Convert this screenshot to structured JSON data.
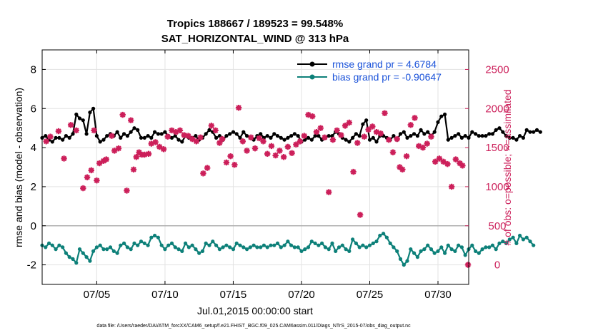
{
  "title_line1": "Tropics 188667 / 189523 = 99.548%",
  "title_line2": "SAT_HORIZONTAL_WIND @ 313 hPa",
  "xlabel": "Jul.01,2015 00:00:00 start",
  "ylabel_left": "rmse and bias (model - observation)",
  "ylabel_right": "# of obs: o=possible; ×=assimilated",
  "footnote": "data file: /Users/raeder/DAI/ATM_forcXX/CAM6_setup/f.e21.FHIST_BGC.f09_025.CAM6assim.011/Diags_NTrS_2015-07/obs_diag_output.nc",
  "colors": {
    "rmse": "#000000",
    "bias": "#0d8079",
    "nobs": "#cc1f5a",
    "legend_text": "#1a52d9",
    "grid": "#e3e3e3",
    "zero_line": "#b0b0b0"
  },
  "chart_data": {
    "type": "line",
    "x_range": [
      1.0,
      32.25
    ],
    "ylim_left": [
      -3,
      9
    ],
    "ylim_right": [
      -250,
      2750
    ],
    "left_ticks": [
      -2,
      0,
      2,
      4,
      6,
      8
    ],
    "right_ticks": [
      0,
      500,
      1000,
      1500,
      2000,
      2500
    ],
    "x_ticks": [
      {
        "day": 5,
        "label": "07/05"
      },
      {
        "day": 10,
        "label": "07/10"
      },
      {
        "day": 15,
        "label": "07/15"
      },
      {
        "day": 20,
        "label": "07/20"
      },
      {
        "day": 25,
        "label": "07/25"
      },
      {
        "day": 30,
        "label": "07/30"
      }
    ],
    "x_step_days": 0.25,
    "legend": [
      {
        "name": "rmse",
        "label": "rmse grand pr = 4.6784"
      },
      {
        "name": "bias",
        "label": "bias grand pr = -0.90647"
      }
    ],
    "series": [
      {
        "name": "rmse",
        "axis": "left",
        "color": "#000000",
        "values": [
          4.5,
          4.6,
          4.4,
          4.3,
          4.5,
          4.5,
          4.4,
          4.6,
          4.5,
          4.7,
          5.7,
          5.5,
          5.4,
          4.7,
          5.8,
          6.0,
          4.6,
          4.3,
          4.4,
          4.6,
          4.7,
          4.6,
          4.8,
          4.5,
          4.7,
          4.6,
          4.8,
          5.0,
          4.9,
          4.5,
          4.5,
          4.6,
          4.5,
          4.8,
          4.7,
          4.7,
          4.8,
          4.6,
          4.5,
          4.6,
          4.4,
          4.3,
          4.6,
          4.5,
          4.5,
          4.6,
          4.4,
          4.5,
          4.7,
          4.9,
          4.8,
          4.5,
          4.6,
          4.4,
          4.6,
          4.7,
          4.8,
          4.7,
          4.5,
          4.8,
          4.6,
          4.5,
          4.4,
          4.6,
          4.7,
          4.5,
          4.6,
          4.5,
          4.7,
          4.6,
          4.5,
          4.4,
          4.5,
          4.6,
          4.7,
          4.6,
          4.3,
          4.4,
          4.5,
          4.4,
          4.6,
          4.6,
          4.4,
          4.5,
          4.6,
          4.6,
          4.8,
          4.7,
          4.5,
          4.4,
          4.3,
          4.5,
          4.7,
          4.6,
          5.2,
          5.4,
          4.4,
          4.5,
          4.3,
          4.6,
          4.6,
          4.5,
          4.4,
          4.6,
          4.4,
          4.7,
          4.8,
          4.5,
          4.6,
          4.7,
          4.6,
          4.9,
          4.7,
          4.8,
          4.6,
          4.8,
          5.3,
          5.6,
          5.7,
          4.4,
          4.5,
          4.6,
          4.7,
          4.5,
          4.6,
          4.5,
          4.8,
          4.7,
          4.6,
          4.6,
          4.6,
          4.7,
          4.7,
          4.9,
          5.0,
          4.8,
          4.6,
          4.5,
          4.5,
          4.4,
          4.6,
          4.5,
          4.9,
          4.8,
          4.8,
          4.9,
          4.8
        ],
        "start_day": 1.0
      },
      {
        "name": "bias",
        "axis": "left",
        "color": "#0d8079",
        "values": [
          -1.0,
          -1.1,
          -0.9,
          -1.0,
          -1.2,
          -1.0,
          -1.1,
          -1.4,
          -1.6,
          -1.7,
          -1.9,
          -1.2,
          -1.4,
          -1.6,
          -1.8,
          -1.3,
          -1.1,
          -1.0,
          -1.2,
          -1.2,
          -1.1,
          -1.3,
          -1.4,
          -1.0,
          -0.9,
          -1.1,
          -1.2,
          -0.9,
          -1.0,
          -0.8,
          -0.9,
          -1.0,
          -0.6,
          -0.5,
          -0.6,
          -1.0,
          -1.2,
          -1.0,
          -0.9,
          -1.1,
          -1.2,
          -1.3,
          -0.9,
          -1.1,
          -1.0,
          -1.2,
          -1.4,
          -1.3,
          -0.9,
          -1.0,
          -0.8,
          -1.0,
          -1.2,
          -1.1,
          -1.0,
          -1.1,
          -1.2,
          -0.9,
          -1.0,
          -1.1,
          -1.2,
          -1.1,
          -1.0,
          -1.1,
          -1.1,
          -1.0,
          -1.1,
          -1.0,
          -1.0,
          -0.9,
          -1.1,
          -1.0,
          -0.8,
          -1.0,
          -1.1,
          -1.1,
          -1.3,
          -1.2,
          -1.1,
          -0.8,
          -0.9,
          -1.0,
          -0.9,
          -1.1,
          -1.2,
          -0.9,
          -1.3,
          -1.1,
          -1.0,
          -1.2,
          -1.3,
          -0.7,
          -0.9,
          -1.1,
          -1.0,
          -1.1,
          -1.0,
          -0.9,
          -0.8,
          -0.5,
          -0.4,
          -0.6,
          -0.9,
          -1.1,
          -1.3,
          -1.7,
          -2.0,
          -1.8,
          -1.2,
          -1.4,
          -1.6,
          -1.3,
          -1.2,
          -1.0,
          -1.2,
          -1.4,
          -1.3,
          -1.1,
          -1.4,
          -1.0,
          -1.2,
          -1.3,
          -1.0,
          -1.1,
          -1.5,
          -1.2,
          -1.0,
          -1.3,
          -1.4,
          -1.2,
          -1.1,
          -1.1,
          -1.0,
          -1.2,
          -0.9,
          -0.8,
          -0.9,
          -0.7,
          -0.6,
          -0.9,
          -0.5,
          -0.7,
          -0.6,
          -0.8,
          -1.0
        ],
        "start_day": 1.0
      },
      {
        "name": "nobs_assimilated",
        "axis": "right",
        "color": "#cc1f5a",
        "points": [
          [
            1.3,
            1580
          ],
          [
            1.6,
            1640
          ],
          [
            2.2,
            1710
          ],
          [
            2.6,
            1360
          ],
          [
            3.1,
            1790
          ],
          [
            3.5,
            1720
          ],
          [
            4.0,
            980
          ],
          [
            4.3,
            1120
          ],
          [
            4.6,
            1210
          ],
          [
            4.8,
            1720
          ],
          [
            5.0,
            1080
          ],
          [
            5.2,
            1300
          ],
          [
            5.5,
            1330
          ],
          [
            5.7,
            1350
          ],
          [
            6.1,
            1650
          ],
          [
            6.3,
            1460
          ],
          [
            6.6,
            1490
          ],
          [
            6.9,
            1920
          ],
          [
            7.2,
            950
          ],
          [
            7.5,
            1850
          ],
          [
            7.7,
            1220
          ],
          [
            7.9,
            1380
          ],
          [
            8.1,
            1440
          ],
          [
            8.3,
            1410
          ],
          [
            8.5,
            1410
          ],
          [
            8.8,
            1420
          ],
          [
            9.0,
            1550
          ],
          [
            9.3,
            1570
          ],
          [
            9.6,
            1510
          ],
          [
            9.9,
            1480
          ],
          [
            10.2,
            1640
          ],
          [
            10.5,
            1720
          ],
          [
            10.8,
            1700
          ],
          [
            11.1,
            1720
          ],
          [
            11.4,
            1660
          ],
          [
            11.7,
            1650
          ],
          [
            12.0,
            1610
          ],
          [
            12.3,
            1580
          ],
          [
            12.6,
            1630
          ],
          [
            12.8,
            1170
          ],
          [
            13.1,
            1240
          ],
          [
            13.4,
            1780
          ],
          [
            13.7,
            1720
          ],
          [
            14.0,
            1560
          ],
          [
            14.2,
            1610
          ],
          [
            14.5,
            1310
          ],
          [
            14.8,
            1390
          ],
          [
            15.1,
            1280
          ],
          [
            15.4,
            2010
          ],
          [
            15.7,
            1580
          ],
          [
            16.0,
            1460
          ],
          [
            16.3,
            1630
          ],
          [
            16.6,
            1490
          ],
          [
            16.9,
            1620
          ],
          [
            17.2,
            1580
          ],
          [
            17.5,
            1420
          ],
          [
            17.8,
            1520
          ],
          [
            18.1,
            1400
          ],
          [
            18.4,
            1460
          ],
          [
            18.7,
            1380
          ],
          [
            19.0,
            1510
          ],
          [
            19.3,
            1430
          ],
          [
            19.6,
            1540
          ],
          [
            19.9,
            1580
          ],
          [
            20.2,
            1650
          ],
          [
            20.5,
            1920
          ],
          [
            20.8,
            1900
          ],
          [
            21.1,
            1700
          ],
          [
            21.4,
            1750
          ],
          [
            21.7,
            1630
          ],
          [
            22.0,
            930
          ],
          [
            22.3,
            1600
          ],
          [
            22.6,
            1720
          ],
          [
            22.9,
            1660
          ],
          [
            23.2,
            1780
          ],
          [
            23.5,
            1820
          ],
          [
            23.8,
            1190
          ],
          [
            24.1,
            1560
          ],
          [
            24.3,
            640
          ],
          [
            24.6,
            1640
          ],
          [
            24.9,
            1730
          ],
          [
            25.2,
            1770
          ],
          [
            25.5,
            1700
          ],
          [
            25.8,
            1680
          ],
          [
            26.1,
            1940
          ],
          [
            26.4,
            1600
          ],
          [
            26.7,
            1440
          ],
          [
            27.0,
            1610
          ],
          [
            27.2,
            1250
          ],
          [
            27.4,
            1220
          ],
          [
            27.7,
            1390
          ],
          [
            28.0,
            1790
          ],
          [
            28.3,
            1880
          ],
          [
            28.6,
            1520
          ],
          [
            28.9,
            1500
          ],
          [
            29.2,
            1550
          ],
          [
            29.5,
            1640
          ],
          [
            29.8,
            1320
          ],
          [
            30.1,
            1360
          ],
          [
            30.4,
            1320
          ],
          [
            30.7,
            1290
          ],
          [
            31.0,
            1000
          ],
          [
            31.3,
            1350
          ],
          [
            31.6,
            1300
          ],
          [
            31.8,
            1270
          ],
          [
            32.2,
            0
          ]
        ]
      }
    ]
  }
}
